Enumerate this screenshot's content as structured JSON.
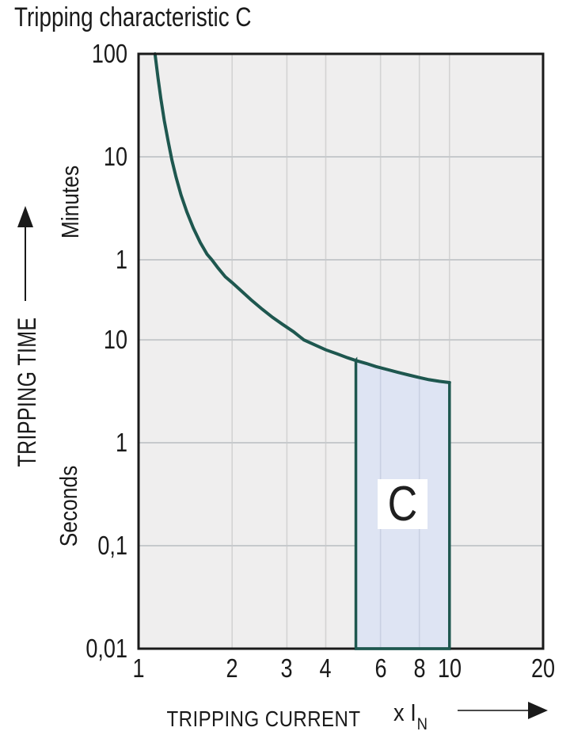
{
  "title": "Tripping characteristic C",
  "y_axis": {
    "label": "TRIPPING TIME",
    "units": [
      "Minutes",
      "Seconds"
    ],
    "ticks": [
      {
        "label": "100",
        "seconds": 6000
      },
      {
        "label": "10",
        "seconds": 600
      },
      {
        "label": "1",
        "seconds": 60
      },
      {
        "label": "10",
        "seconds": 10
      },
      {
        "label": "1",
        "seconds": 1
      },
      {
        "label": "0,1",
        "seconds": 0.1
      },
      {
        "label": "0,01",
        "seconds": 0.01
      }
    ]
  },
  "x_axis": {
    "label": "TRIPPING CURRENT",
    "multiplier": "x I",
    "multiplier_sub": "N",
    "ticks": [
      {
        "label": "1",
        "value": 1
      },
      {
        "label": "2",
        "value": 2
      },
      {
        "label": "3",
        "value": 3
      },
      {
        "label": "4",
        "value": 4
      },
      {
        "label": "6",
        "value": 6
      },
      {
        "label": "8",
        "value": 8
      },
      {
        "label": "10",
        "value": 10
      },
      {
        "label": "20",
        "value": 20
      }
    ]
  },
  "region": {
    "label": "C",
    "x_from": 5,
    "x_to": 10,
    "bottom_seconds": 0.01,
    "top_seconds_at_x_from": 6.3,
    "top_seconds_at_x_to": 3.85
  },
  "colors": {
    "curve": "#1e574f",
    "region_fill": "#dee4f3",
    "region_border": "#1e574f",
    "plot_bg": "#efeeee",
    "grid_h": "#c6c9cc",
    "grid_v": "#d3d3d3",
    "grid_over_region": "#c9d0e2",
    "axis_border": "#1a1a1a",
    "text": "#1a1a1a",
    "label_box": "#ffffff"
  },
  "chart_data": {
    "type": "line",
    "title": "Tripping characteristic C",
    "xlabel": "TRIPPING CURRENT (x IN)",
    "ylabel": "TRIPPING TIME",
    "x_scale": "log",
    "y_scale": "log",
    "x_range": [
      1,
      20
    ],
    "y_range_seconds": [
      0.01,
      6000
    ],
    "x_gridlines": [
      2,
      3,
      4,
      6,
      8,
      10
    ],
    "y_gridlines_seconds": [
      600,
      60,
      10,
      1,
      0.1
    ],
    "grid": true,
    "legend": "none",
    "series": [
      {
        "name": "tripping-curve",
        "points_x_times_In_vs_seconds": [
          [
            1.13,
            6000
          ],
          [
            1.155,
            3500
          ],
          [
            1.18,
            2200
          ],
          [
            1.21,
            1350
          ],
          [
            1.245,
            850
          ],
          [
            1.28,
            560
          ],
          [
            1.32,
            380
          ],
          [
            1.37,
            255
          ],
          [
            1.43,
            175
          ],
          [
            1.5,
            122
          ],
          [
            1.58,
            88
          ],
          [
            1.66,
            68
          ],
          [
            1.72,
            60
          ],
          [
            1.8,
            50
          ],
          [
            1.9,
            41
          ],
          [
            2.0,
            36
          ],
          [
            2.15,
            29.5
          ],
          [
            2.3,
            24.5
          ],
          [
            2.5,
            19.8
          ],
          [
            2.7,
            16.5
          ],
          [
            2.9,
            14.2
          ],
          [
            3.15,
            12.0
          ],
          [
            3.4,
            10.0
          ],
          [
            3.7,
            8.9
          ],
          [
            4.0,
            8.0
          ],
          [
            4.35,
            7.3
          ],
          [
            4.7,
            6.7
          ],
          [
            5.0,
            6.3
          ],
          [
            5.4,
            5.9
          ],
          [
            5.8,
            5.5
          ],
          [
            6.3,
            5.15
          ],
          [
            6.8,
            4.85
          ],
          [
            7.4,
            4.55
          ],
          [
            8.0,
            4.3
          ],
          [
            8.6,
            4.1
          ],
          [
            9.3,
            3.95
          ],
          [
            10.0,
            3.85
          ]
        ]
      }
    ],
    "shaded_region": {
      "label": "C",
      "x_from": 5,
      "x_to": 10,
      "bottom_seconds": 0.01,
      "top_follows": "tripping-curve"
    }
  }
}
